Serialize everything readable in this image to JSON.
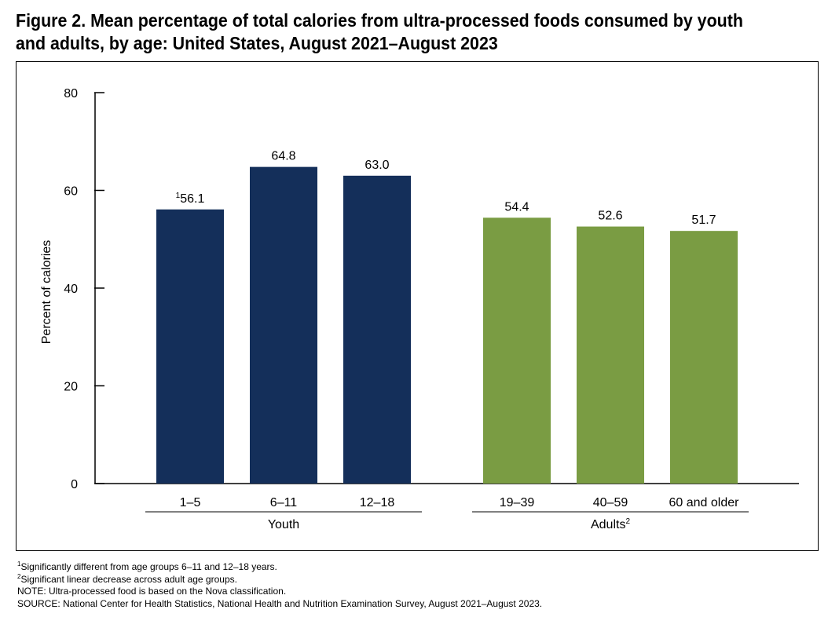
{
  "title_line1": "Figure 2. Mean percentage of total calories from ultra-processed foods consumed by youth",
  "title_line2": "and adults, by age: United States, August 2021–August 2023",
  "colors": {
    "youth": "#142f5a",
    "adults": "#7a9c43",
    "axis": "#000000"
  },
  "chart_data": {
    "type": "bar",
    "title": "Mean percentage of total calories from ultra-processed foods consumed by youth and adults, by age: United States, August 2021–August 2023",
    "ylabel": "Percent of calories",
    "xlabel": "",
    "ylim": [
      0,
      80
    ],
    "yticks": [
      0,
      20,
      40,
      60,
      80
    ],
    "grid": false,
    "groups": [
      {
        "name": "Youth",
        "sup": "",
        "color_key": "youth",
        "bars": [
          {
            "category": "1–5",
            "value": 56.1,
            "label": "56.1",
            "sup": "1"
          },
          {
            "category": "6–11",
            "value": 64.8,
            "label": "64.8",
            "sup": ""
          },
          {
            "category": "12–18",
            "value": 63.0,
            "label": "63.0",
            "sup": ""
          }
        ]
      },
      {
        "name": "Adults",
        "sup": "2",
        "color_key": "adults",
        "bars": [
          {
            "category": "19–39",
            "value": 54.4,
            "label": "54.4",
            "sup": ""
          },
          {
            "category": "40–59",
            "value": 52.6,
            "label": "52.6",
            "sup": ""
          },
          {
            "category": "60 and older",
            "value": 51.7,
            "label": "51.7",
            "sup": ""
          }
        ]
      }
    ]
  },
  "footnotes": {
    "note1": {
      "sup": "1",
      "text": "Significantly different from age groups 6–11 and 12–18 years."
    },
    "note2": {
      "sup": "2",
      "text": "Significant linear decrease across adult age groups."
    },
    "note": "NOTE: Ultra-processed food is based on the Nova classification.",
    "source": "SOURCE: National Center for Health Statistics, National Health and Nutrition Examination Survey, August 2021–August 2023."
  }
}
